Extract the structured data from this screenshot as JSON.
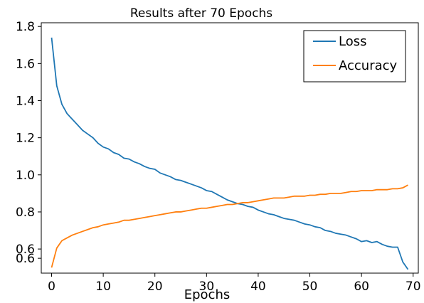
{
  "chart_data": {
    "type": "line",
    "title": "Results after 70 Epochs",
    "xlabel": "Epochs",
    "ylabel": "",
    "xlim": [
      -2,
      71
    ],
    "ylim": [
      0.47,
      1.82
    ],
    "x_ticks": [
      0,
      10,
      20,
      30,
      40,
      50,
      60,
      70
    ],
    "y_ticks": [
      {
        "value": 0.55,
        "label": "0.6"
      },
      {
        "value": 0.6,
        "label": "0.6"
      },
      {
        "value": 0.8,
        "label": "0.8"
      },
      {
        "value": 1.0,
        "label": "1.0"
      },
      {
        "value": 1.2,
        "label": "1.2"
      },
      {
        "value": 1.4,
        "label": "1.4"
      },
      {
        "value": 1.6,
        "label": "1.6"
      },
      {
        "value": 1.8,
        "label": "1.8"
      }
    ],
    "grid": false,
    "legend_position": "top-right",
    "x": [
      0,
      1,
      2,
      3,
      4,
      5,
      6,
      7,
      8,
      9,
      10,
      11,
      12,
      13,
      14,
      15,
      16,
      17,
      18,
      19,
      20,
      21,
      22,
      23,
      24,
      25,
      26,
      27,
      28,
      29,
      30,
      31,
      32,
      33,
      34,
      35,
      36,
      37,
      38,
      39,
      40,
      41,
      42,
      43,
      44,
      45,
      46,
      47,
      48,
      49,
      50,
      51,
      52,
      53,
      54,
      55,
      56,
      57,
      58,
      59,
      60,
      61,
      62,
      63,
      64,
      65,
      66,
      67,
      68,
      69
    ],
    "series": [
      {
        "name": "Loss",
        "color": "#1f77b4",
        "values": [
          1.74,
          1.48,
          1.38,
          1.33,
          1.3,
          1.27,
          1.24,
          1.22,
          1.2,
          1.17,
          1.15,
          1.14,
          1.12,
          1.11,
          1.09,
          1.085,
          1.07,
          1.06,
          1.045,
          1.035,
          1.03,
          1.01,
          1.0,
          0.99,
          0.975,
          0.97,
          0.96,
          0.95,
          0.94,
          0.93,
          0.915,
          0.91,
          0.895,
          0.88,
          0.865,
          0.855,
          0.845,
          0.84,
          0.83,
          0.825,
          0.81,
          0.8,
          0.79,
          0.785,
          0.775,
          0.765,
          0.76,
          0.755,
          0.745,
          0.735,
          0.73,
          0.72,
          0.715,
          0.7,
          0.695,
          0.685,
          0.68,
          0.675,
          0.665,
          0.655,
          0.64,
          0.645,
          0.635,
          0.64,
          0.625,
          0.615,
          0.61,
          0.61,
          0.53,
          0.49
        ]
      },
      {
        "name": "Accuracy",
        "color": "#ff7f0e",
        "values": [
          0.5,
          0.605,
          0.645,
          0.66,
          0.675,
          0.685,
          0.695,
          0.705,
          0.715,
          0.72,
          0.73,
          0.735,
          0.74,
          0.745,
          0.755,
          0.755,
          0.76,
          0.765,
          0.77,
          0.775,
          0.78,
          0.785,
          0.79,
          0.795,
          0.8,
          0.8,
          0.805,
          0.81,
          0.815,
          0.82,
          0.82,
          0.825,
          0.83,
          0.835,
          0.84,
          0.84,
          0.845,
          0.85,
          0.85,
          0.855,
          0.86,
          0.865,
          0.87,
          0.875,
          0.875,
          0.875,
          0.88,
          0.885,
          0.885,
          0.885,
          0.89,
          0.89,
          0.895,
          0.895,
          0.9,
          0.9,
          0.9,
          0.905,
          0.91,
          0.91,
          0.915,
          0.915,
          0.915,
          0.92,
          0.92,
          0.92,
          0.925,
          0.925,
          0.93,
          0.945
        ]
      }
    ]
  }
}
